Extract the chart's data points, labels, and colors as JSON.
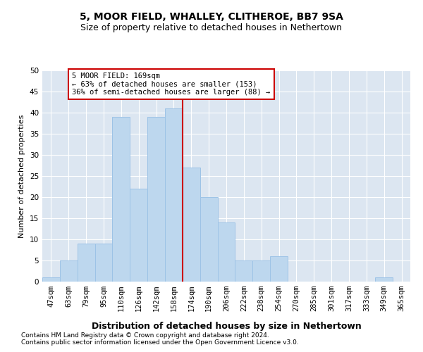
{
  "title": "5, MOOR FIELD, WHALLEY, CLITHEROE, BB7 9SA",
  "subtitle": "Size of property relative to detached houses in Nethertown",
  "xlabel": "Distribution of detached houses by size in Nethertown",
  "ylabel": "Number of detached properties",
  "footnote1": "Contains HM Land Registry data © Crown copyright and database right 2024.",
  "footnote2": "Contains public sector information licensed under the Open Government Licence v3.0.",
  "bar_labels": [
    "47sqm",
    "63sqm",
    "79sqm",
    "95sqm",
    "110sqm",
    "126sqm",
    "142sqm",
    "158sqm",
    "174sqm",
    "190sqm",
    "206sqm",
    "222sqm",
    "238sqm",
    "254sqm",
    "270sqm",
    "285sqm",
    "301sqm",
    "317sqm",
    "333sqm",
    "349sqm",
    "365sqm"
  ],
  "bar_values": [
    1,
    5,
    9,
    9,
    39,
    22,
    39,
    41,
    27,
    20,
    14,
    5,
    5,
    6,
    0,
    0,
    0,
    0,
    0,
    1,
    0
  ],
  "bar_color": "#bdd7ee",
  "bar_edge_color": "#9dc3e6",
  "vline_color": "#cc0000",
  "annotation_text": "5 MOOR FIELD: 169sqm\n← 63% of detached houses are smaller (153)\n36% of semi-detached houses are larger (88) →",
  "annotation_box_color": "#ffffff",
  "annotation_box_edge": "#cc0000",
  "ylim": [
    0,
    50
  ],
  "yticks": [
    0,
    5,
    10,
    15,
    20,
    25,
    30,
    35,
    40,
    45,
    50
  ],
  "background_color": "#dce6f1",
  "grid_color": "#ffffff",
  "title_fontsize": 10,
  "subtitle_fontsize": 9,
  "xlabel_fontsize": 9,
  "ylabel_fontsize": 8,
  "tick_fontsize": 7.5,
  "annotation_fontsize": 7.5,
  "footnote_fontsize": 6.5
}
